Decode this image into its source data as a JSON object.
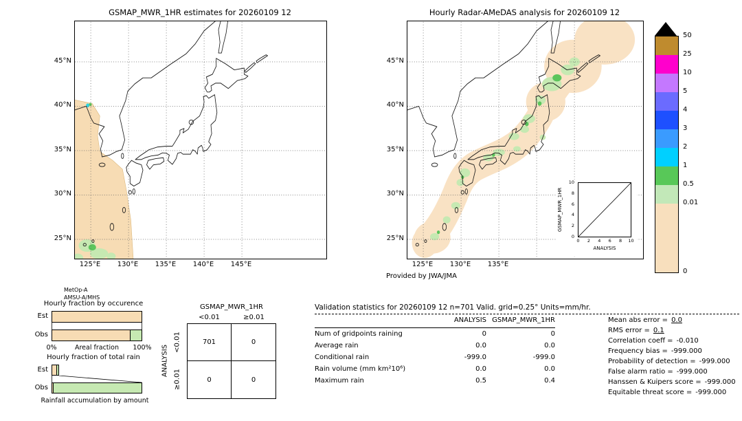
{
  "left_map": {
    "title": "GSMAP_MWR_1HR estimates for 20260109 12",
    "lat_ticks": [
      "45°N",
      "40°N",
      "35°N",
      "30°N",
      "25°N"
    ],
    "lon_ticks": [
      "125°E",
      "130°E",
      "135°E",
      "140°E",
      "145°E"
    ],
    "sensor_lines": [
      "MetOp-A",
      "AMSU-A/MHS"
    ]
  },
  "right_map": {
    "title": "Hourly Radar-AMeDAS analysis for 20260109 12",
    "lat_ticks": [
      "45°N",
      "40°N",
      "35°N",
      "30°N",
      "25°N"
    ],
    "lon_ticks": [
      "125°E",
      "130°E",
      "135°E"
    ],
    "credit": "Provided by JWA/JMA",
    "inset": {
      "xlabel": "ANALYSIS",
      "ylabel": "GSMAP_MWR_1HR",
      "x_ticks": [
        "0",
        "2",
        "4",
        "6",
        "8",
        "10"
      ],
      "y_ticks": [
        "0",
        "2",
        "4",
        "6",
        "8",
        "10"
      ]
    }
  },
  "colorbar": {
    "labels": [
      "50",
      "25",
      "10",
      "5",
      "4",
      "3",
      "2",
      "1",
      "0.5",
      "0.01",
      "0"
    ],
    "segment_colors": [
      "#bf8b2e",
      "#ff00cc",
      "#c478ff",
      "#6b6bff",
      "#1e50ff",
      "#3a9bff",
      "#00d0ff",
      "#58c858",
      "#c2e8b8",
      "#f8dfbd"
    ]
  },
  "occurrence_chart": {
    "title": "Hourly fraction by occurence",
    "rows": [
      "Est",
      "Obs"
    ],
    "axis": {
      "min": "0%",
      "max": "100%",
      "label": "Areal fraction"
    },
    "est": {
      "no_rain_pct": 100,
      "rain_pct": 0
    },
    "obs": {
      "no_rain_pct": 87,
      "rain_pct": 13
    }
  },
  "total_rain_chart": {
    "title": "Hourly fraction of total rain",
    "rows": [
      "Est",
      "Obs"
    ],
    "caption": "Rainfall accumulation by amount",
    "est": {
      "no_rain_pct": 6,
      "rain_pct": 2
    },
    "obs": {
      "no_rain_pct": 2,
      "rain_pct": 98
    }
  },
  "contingency": {
    "title": "GSMAP_MWR_1HR",
    "col_headers": [
      "<0.01",
      "≥0.01"
    ],
    "row_axis": "ANALYSIS",
    "row_headers": [
      "<0.01",
      "≥0.01"
    ],
    "values": [
      [
        "701",
        "0"
      ],
      [
        "0",
        "0"
      ]
    ]
  },
  "stats": {
    "title": "Validation statistics for 20260109 12  n=701 Valid. grid=0.25°  Units=mm/hr.",
    "col_headers": [
      "ANALYSIS",
      "GSMAP_MWR_1HR"
    ],
    "rows": [
      {
        "label": "Num of gridpoints raining",
        "analysis": "0",
        "gsmap": "0"
      },
      {
        "label": "Average rain",
        "analysis": "0.0",
        "gsmap": "0.0"
      },
      {
        "label": "Conditional rain",
        "analysis": "-999.0",
        "gsmap": "-999.0"
      },
      {
        "label": "Rain volume (mm km²10⁶)",
        "analysis": "0.0",
        "gsmap": "0.0"
      },
      {
        "label": "Maximum rain",
        "analysis": "0.5",
        "gsmap": "0.4"
      }
    ],
    "summary": [
      {
        "label": "Mean abs error =",
        "value": "0.0"
      },
      {
        "label": "RMS error =",
        "value": "0.1"
      },
      {
        "label": "Correlation coeff =",
        "value": "-0.010"
      },
      {
        "label": "Frequency bias =",
        "value": "-999.000"
      },
      {
        "label": "Probability of detection =",
        "value": "-999.000"
      },
      {
        "label": "False alarm ratio =",
        "value": "-999.000"
      },
      {
        "label": "Hanssen & Kuipers score =",
        "value": "-999.000"
      },
      {
        "label": "Equitable threat score =",
        "value": "-999.000"
      }
    ]
  },
  "chart_data": [
    {
      "type": "heatmap",
      "title": "GSMAP_MWR_1HR estimates for 20260109 12",
      "x_ticks": [
        "125°E",
        "130°E",
        "135°E",
        "140°E",
        "145°E"
      ],
      "y_ticks": [
        "45°N",
        "40°N",
        "35°N",
        "30°N",
        "25°N"
      ],
      "colorbar_levels_mm_per_hr": [
        0,
        0.01,
        0.5,
        1,
        2,
        3,
        4,
        5,
        10,
        25,
        50
      ],
      "description": "MetOp-A AMSU-A/MHS satellite swath over the East China Sea shaded at 0 mm/hr, with light rain patches (0.01-1 mm/hr) near 23-25N 123-128E and a small 1-2 mm/hr spot near 40N 125E"
    },
    {
      "type": "heatmap",
      "title": "Hourly Radar-AMeDAS analysis for 20260109 12",
      "x_ticks": [
        "125°E",
        "130°E",
        "135°E"
      ],
      "y_ticks": [
        "45°N",
        "40°N",
        "35°N",
        "30°N",
        "25°N"
      ],
      "colorbar_levels_mm_per_hr": [
        0,
        0.01,
        0.5,
        1,
        2,
        3,
        4,
        5,
        10,
        25,
        50
      ],
      "description": "Radar coverage band (0 mm/hr) hugging the Japanese archipelago from the Ryukyus to Hokkaido with scattered light rain (0.01-1 mm/hr) over Hokkaido, northern Honshu, the Sea of Japan coast, Kyushu and the southwest islands"
    },
    {
      "type": "scatter",
      "title": "GSMAP_MWR_1HR vs ANALYSIS",
      "xlabel": "ANALYSIS",
      "ylabel": "GSMAP_MWR_1HR",
      "xlim": [
        0,
        10
      ],
      "ylim": [
        0,
        10
      ],
      "x_ticks": [
        0,
        2,
        4,
        6,
        8,
        10
      ],
      "y_ticks": [
        0,
        2,
        4,
        6,
        8,
        10
      ],
      "points": [],
      "reference_line": "y=x"
    },
    {
      "type": "bar",
      "title": "Hourly fraction by occurence",
      "categories": [
        "Est",
        "Obs"
      ],
      "series": [
        {
          "name": "no rain",
          "values": [
            100,
            87
          ]
        },
        {
          "name": "rain",
          "values": [
            0,
            13
          ]
        }
      ],
      "xlabel": "Areal fraction",
      "xlim_labels": [
        "0%",
        "100%"
      ]
    },
    {
      "type": "bar",
      "title": "Hourly fraction of total rain",
      "categories": [
        "Est",
        "Obs"
      ],
      "series": [
        {
          "name": "no rain",
          "values": [
            6,
            2
          ]
        },
        {
          "name": "rain",
          "values": [
            2,
            98
          ]
        }
      ],
      "xlabel": "Rainfall accumulation by amount"
    },
    {
      "type": "table",
      "title": "GSMAP_MWR_1HR contingency vs ANALYSIS",
      "rows": [
        "<0.01",
        ">=0.01"
      ],
      "cols": [
        "<0.01",
        ">=0.01"
      ],
      "values": [
        [
          701,
          0
        ],
        [
          0,
          0
        ]
      ]
    }
  ]
}
